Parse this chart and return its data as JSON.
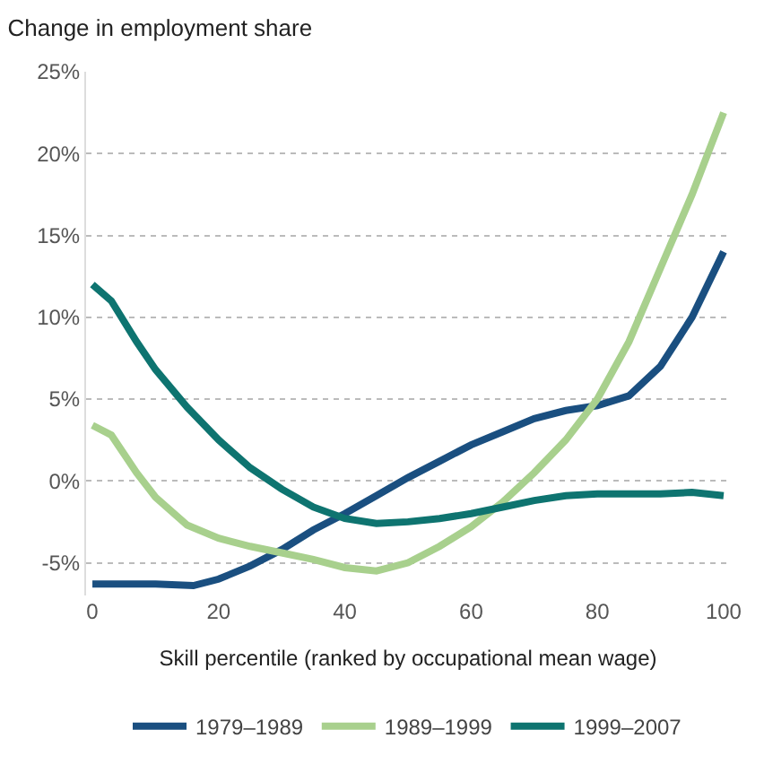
{
  "chart_data": {
    "type": "line",
    "title": "Change in employment share",
    "xlabel": "Skill percentile (ranked by occupational mean wage)",
    "xlim": [
      -1,
      101
    ],
    "xticks": [
      0,
      20,
      40,
      60,
      80,
      100
    ],
    "ylim": [
      -7,
      25
    ],
    "yticks": [
      {
        "value": -5,
        "label": "-5%"
      },
      {
        "value": 0,
        "label": "0%"
      },
      {
        "value": 5,
        "label": "5%"
      },
      {
        "value": 10,
        "label": "10%"
      },
      {
        "value": 15,
        "label": "15%"
      },
      {
        "value": 20,
        "label": "20%"
      },
      {
        "value": 25,
        "label": "25%"
      }
    ],
    "grid": "y",
    "legend": "bottom",
    "marker": "none",
    "line_style": "solid",
    "series": [
      {
        "name": "1979–1989",
        "color": "#1a4f80",
        "x": [
          0,
          10,
          16,
          20,
          25,
          30,
          35,
          40,
          45,
          50,
          55,
          60,
          65,
          70,
          75,
          80,
          85,
          90,
          95,
          100
        ],
        "values": [
          -6.3,
          -6.3,
          -6.4,
          -6.0,
          -5.2,
          -4.2,
          -3.0,
          -2.0,
          -0.9,
          0.2,
          1.2,
          2.2,
          3.0,
          3.8,
          4.3,
          4.6,
          5.2,
          7.0,
          10.0,
          14.0
        ]
      },
      {
        "name": "1989–1999",
        "color": "#a8d08d",
        "x": [
          0,
          3,
          7,
          10,
          15,
          20,
          25,
          30,
          35,
          40,
          45,
          50,
          55,
          60,
          65,
          70,
          75,
          80,
          85,
          90,
          95,
          100
        ],
        "values": [
          3.4,
          2.8,
          0.5,
          -1.0,
          -2.7,
          -3.5,
          -4.0,
          -4.4,
          -4.8,
          -5.3,
          -5.5,
          -5.0,
          -4.0,
          -2.8,
          -1.3,
          0.5,
          2.5,
          5.0,
          8.5,
          13.0,
          17.5,
          22.5
        ]
      },
      {
        "name": "1999–2007",
        "color": "#0e7470",
        "x": [
          0,
          3,
          7,
          10,
          15,
          20,
          25,
          30,
          35,
          40,
          45,
          50,
          55,
          60,
          65,
          70,
          75,
          80,
          90,
          95,
          100
        ],
        "values": [
          12.0,
          11.0,
          8.5,
          6.8,
          4.5,
          2.5,
          0.8,
          -0.5,
          -1.6,
          -2.3,
          -2.6,
          -2.5,
          -2.3,
          -2.0,
          -1.6,
          -1.2,
          -0.9,
          -0.8,
          -0.8,
          -0.7,
          -0.9
        ]
      }
    ]
  }
}
